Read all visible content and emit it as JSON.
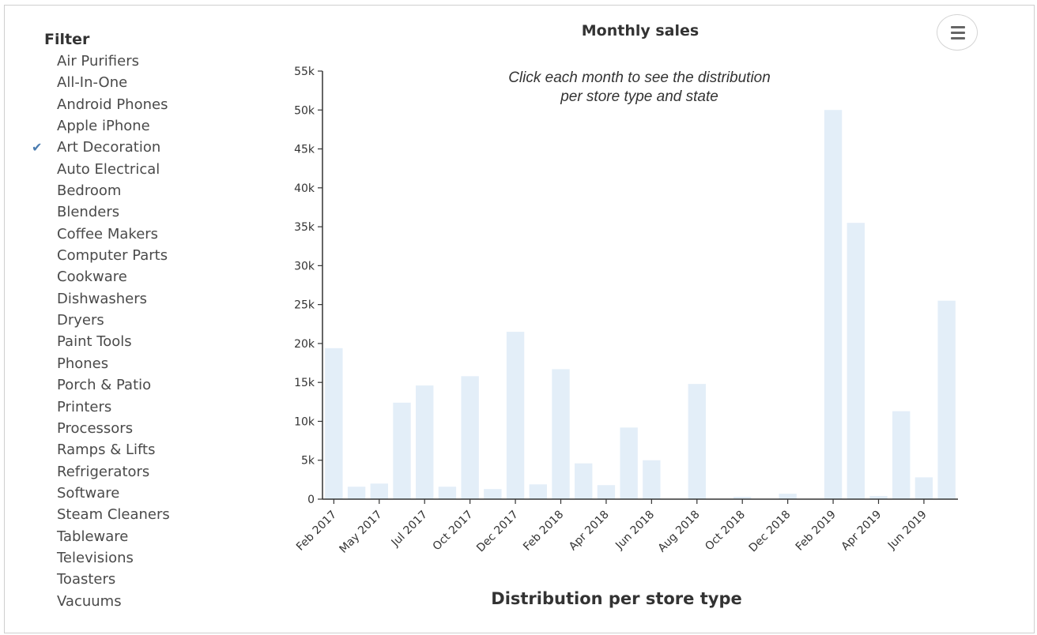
{
  "filter": {
    "title": "Filter",
    "items": [
      {
        "label": "Air Purifiers",
        "selected": false
      },
      {
        "label": "All-In-One",
        "selected": false
      },
      {
        "label": "Android Phones",
        "selected": false
      },
      {
        "label": "Apple iPhone",
        "selected": false
      },
      {
        "label": "Art Decoration",
        "selected": true
      },
      {
        "label": "Auto Electrical",
        "selected": false
      },
      {
        "label": "Bedroom",
        "selected": false
      },
      {
        "label": "Blenders",
        "selected": false
      },
      {
        "label": "Coffee Makers",
        "selected": false
      },
      {
        "label": "Computer Parts",
        "selected": false
      },
      {
        "label": "Cookware",
        "selected": false
      },
      {
        "label": "Dishwashers",
        "selected": false
      },
      {
        "label": "Dryers",
        "selected": false
      },
      {
        "label": "Paint Tools",
        "selected": false
      },
      {
        "label": "Phones",
        "selected": false
      },
      {
        "label": "Porch & Patio",
        "selected": false
      },
      {
        "label": "Printers",
        "selected": false
      },
      {
        "label": "Processors",
        "selected": false
      },
      {
        "label": "Ramps & Lifts",
        "selected": false
      },
      {
        "label": "Refrigerators",
        "selected": false
      },
      {
        "label": "Software",
        "selected": false
      },
      {
        "label": "Steam Cleaners",
        "selected": false
      },
      {
        "label": "Tableware",
        "selected": false
      },
      {
        "label": "Televisions",
        "selected": false
      },
      {
        "label": "Toasters",
        "selected": false
      },
      {
        "label": "Vacuums",
        "selected": false
      }
    ],
    "check_icon": "check-icon"
  },
  "menu": {
    "icon": "hamburger-menu-icon"
  },
  "chart_data": {
    "type": "bar",
    "title": "Monthly sales",
    "annotation": "Click each month to see the distribution per store type and state",
    "xlabel": "",
    "ylabel": "",
    "ylim": [
      0,
      55000
    ],
    "yticks": [
      0,
      5000,
      10000,
      15000,
      20000,
      25000,
      30000,
      35000,
      40000,
      45000,
      50000,
      55000
    ],
    "ytick_labels": [
      "0",
      "5k",
      "10k",
      "15k",
      "20k",
      "25k",
      "30k",
      "35k",
      "40k",
      "45k",
      "50k",
      "55k"
    ],
    "x_tick_labels": [
      {
        "label": "Feb 2017",
        "bar_index": 0
      },
      {
        "label": "May 2017",
        "bar_index": 2
      },
      {
        "label": "Jul 2017",
        "bar_index": 4
      },
      {
        "label": "Oct 2017",
        "bar_index": 6
      },
      {
        "label": "Dec 2017",
        "bar_index": 8
      },
      {
        "label": "Feb 2018",
        "bar_index": 10
      },
      {
        "label": "Apr 2018",
        "bar_index": 12
      },
      {
        "label": "Jun 2018",
        "bar_index": 14
      },
      {
        "label": "Aug 2018",
        "bar_index": 16
      },
      {
        "label": "Oct 2018",
        "bar_index": 18
      },
      {
        "label": "Dec 2018",
        "bar_index": 20
      },
      {
        "label": "Feb 2019",
        "bar_index": 22
      },
      {
        "label": "Apr 2019",
        "bar_index": 24
      },
      {
        "label": "Jun 2019",
        "bar_index": 26
      }
    ],
    "values": [
      19400,
      1600,
      2000,
      12400,
      14600,
      1600,
      15800,
      1300,
      21500,
      1900,
      16700,
      4600,
      1800,
      9200,
      5000,
      0,
      14800,
      0,
      300,
      0,
      700,
      0,
      50000,
      35500,
      400,
      11300,
      2800,
      25500
    ],
    "highlighted_index": 21,
    "colors": {
      "bar": "#e3eef8",
      "highlight": "#4e96c9",
      "axis": "#333333"
    },
    "grid": false,
    "legend": "none"
  },
  "footer": {
    "title": "Distribution per store type"
  }
}
